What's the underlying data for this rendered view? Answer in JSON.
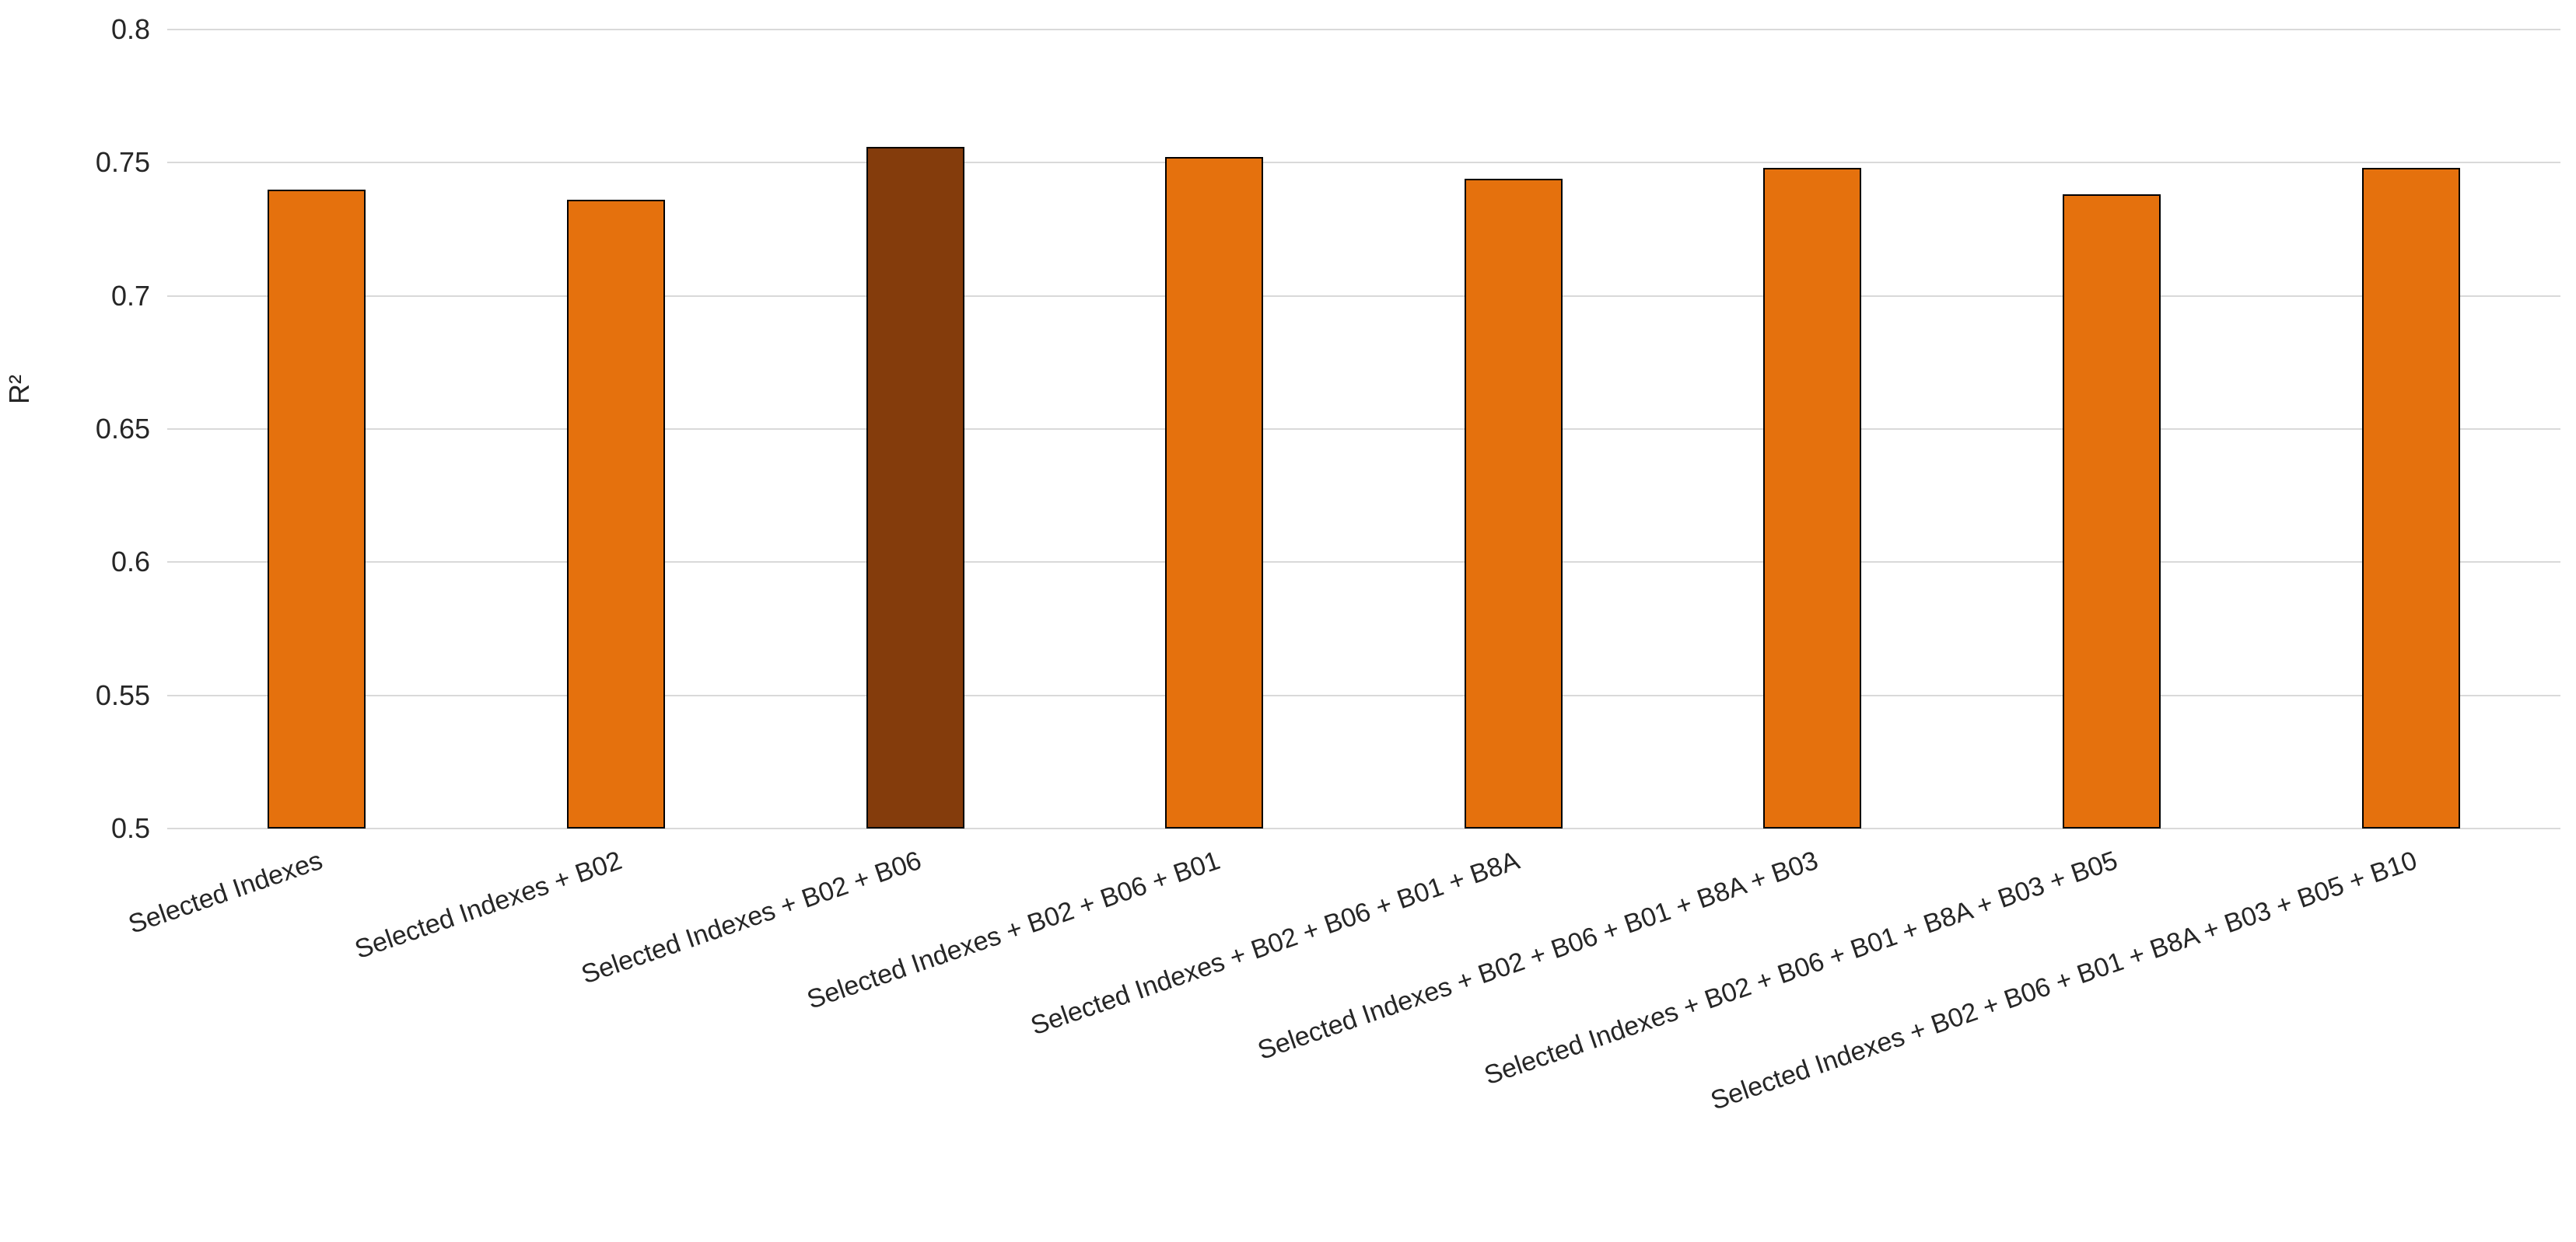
{
  "chart_data": {
    "type": "bar",
    "title": "",
    "xlabel": "",
    "ylabel": "R²",
    "categories": [
      "Selected Indexes",
      "Selected Indexes + B02",
      "Selected Indexes + B02 + B06",
      "Selected Indexes + B02 + B06 + B01",
      "Selected Indexes + B02 + B06 + B01 + B8A",
      "Selected Indexes + B02 + B06 + B01 + B8A + B03",
      "Selected Indexes + B02 + B06 + B01 + B8A + B03 + B05",
      "Selected Indexes + B02 + B06 + B01 + B8A + B03 + B05 + B10"
    ],
    "values": [
      0.74,
      0.736,
      0.756,
      0.752,
      0.744,
      0.748,
      0.738,
      0.748
    ],
    "highlight_index": 2,
    "ylim": [
      0.5,
      0.8
    ],
    "ytick_labels": [
      "0.5",
      "0.55",
      "0.6",
      "0.65",
      "0.7",
      "0.75",
      "0.8"
    ],
    "ytick_values": [
      0.5,
      0.55,
      0.6,
      0.65,
      0.7,
      0.75,
      0.8
    ],
    "grid": true,
    "legend": "none",
    "colors": {
      "bar_fill": "#e5710d",
      "bar_highlight_fill": "#843c0c",
      "bar_border": "#000000",
      "gridline": "#d9d9d9",
      "text": "#262626"
    }
  }
}
